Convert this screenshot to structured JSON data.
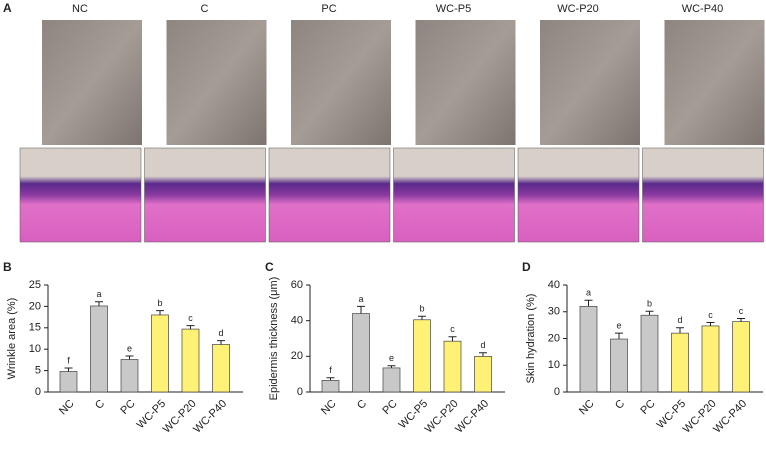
{
  "panel_a": {
    "panel": "A",
    "columns": [
      "NC",
      "C",
      "PC",
      "WC-P5",
      "WC-P20",
      "WC-P40"
    ]
  },
  "chart_data": [
    {
      "panel": "B",
      "type": "bar",
      "y_label": "Wrinkle area (%)",
      "categories": [
        "NC",
        "C",
        "PC",
        "WC-P5",
        "WC-P20",
        "WC-P40"
      ],
      "values": [
        4.8,
        20.1,
        7.6,
        18.0,
        14.7,
        11.1
      ],
      "errors": [
        0.8,
        1.0,
        0.8,
        1.0,
        0.8,
        0.9
      ],
      "annotations": [
        "f",
        "a",
        "e",
        "b",
        "c",
        "d"
      ],
      "colors": [
        "#c8c8c8",
        "#c8c8c8",
        "#c8c8c8",
        "#fff176",
        "#fff176",
        "#fff176"
      ],
      "ylim": [
        0,
        25
      ],
      "yticks": [
        0,
        5,
        10,
        15,
        20,
        25
      ]
    },
    {
      "panel": "C",
      "type": "bar",
      "y_label": "Epidermis thickness (μm)",
      "categories": [
        "NC",
        "C",
        "PC",
        "WC-P5",
        "WC-P20",
        "WC-P40"
      ],
      "values": [
        6.5,
        44,
        13.5,
        40.5,
        28.5,
        20
      ],
      "errors": [
        1.5,
        4,
        1.2,
        2,
        2.5,
        2
      ],
      "annotations": [
        "f",
        "a",
        "e",
        "b",
        "c",
        "d"
      ],
      "colors": [
        "#c8c8c8",
        "#c8c8c8",
        "#c8c8c8",
        "#fff176",
        "#fff176",
        "#fff176"
      ],
      "ylim": [
        0,
        60
      ],
      "yticks": [
        0,
        20,
        40,
        60
      ]
    },
    {
      "panel": "D",
      "type": "bar",
      "y_label": "Skin hydration (%)",
      "categories": [
        "NC",
        "C",
        "PC",
        "WC-P5",
        "WC-P20",
        "WC-P40"
      ],
      "values": [
        32,
        19.8,
        28.7,
        22,
        24.7,
        26.3
      ],
      "errors": [
        2.3,
        2.2,
        1.5,
        2,
        1.3,
        1.2
      ],
      "annotations": [
        "a",
        "e",
        "b",
        "d",
        "c",
        "c"
      ],
      "colors": [
        "#c8c8c8",
        "#c8c8c8",
        "#c8c8c8",
        "#fff176",
        "#fff176",
        "#fff176"
      ],
      "ylim": [
        0,
        40
      ],
      "yticks": [
        0,
        10,
        20,
        30,
        40
      ]
    }
  ]
}
